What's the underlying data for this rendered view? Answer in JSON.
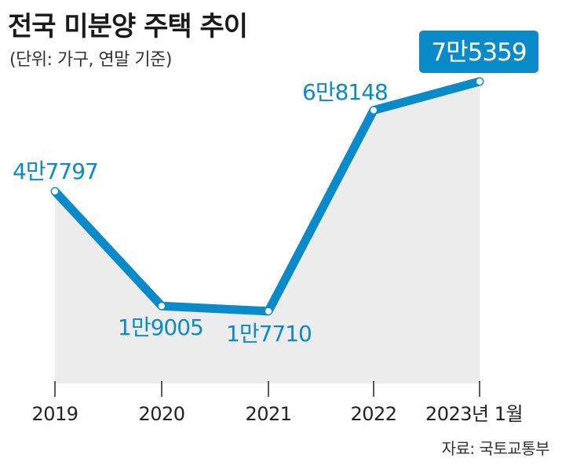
{
  "title": "전국 미분양 주택 추이",
  "subtitle": "(단위: 가구, 연말 기준)",
  "source": "자료: 국토교통부",
  "colors": {
    "line": "#0a8ac8",
    "label": "#0a8ac8",
    "area": "#ececec",
    "highlight_bg": "#0a8ac8",
    "highlight_text": "#ffffff"
  },
  "chart_data": {
    "type": "line",
    "title": "전국 미분양 주택 추이",
    "subtitle": "(단위: 가구, 연말 기준)",
    "categories": [
      "2019",
      "2020",
      "2021",
      "2022",
      "2023년 1월"
    ],
    "values": [
      47797,
      19005,
      17710,
      68148,
      75359
    ],
    "data_labels": [
      "4만7797",
      "1만9005",
      "1만7710",
      "6만8148",
      "7만5359"
    ],
    "highlight_index": 4,
    "ylim": [
      0,
      80000
    ],
    "grid": false,
    "area_fill": true
  }
}
